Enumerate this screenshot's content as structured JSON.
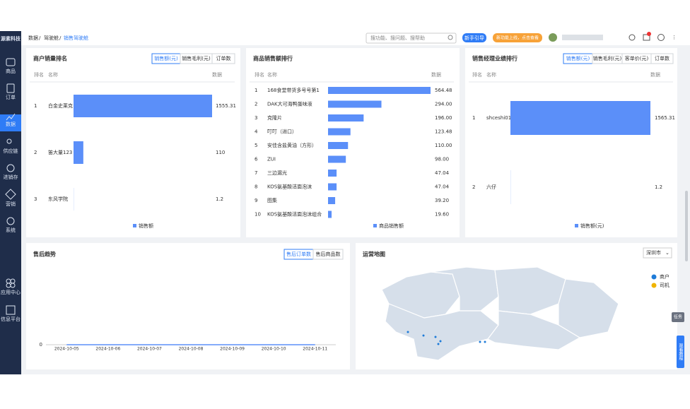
{
  "sidebar": {
    "logo": "源素科技",
    "items": [
      "商品",
      "订单",
      "数据",
      "供应链",
      "进销存",
      "营销",
      "系统",
      "应用中心",
      "信息平台"
    ]
  },
  "header": {
    "breadcrumb": [
      "数据",
      "驾驶舱",
      "销售驾驶舱"
    ],
    "search_placeholder": "搜功能、搜问题、搜帮助",
    "guide_button": "新手引导",
    "new_feature": "新功能上线，点击查看"
  },
  "side_tabs": [
    "任务",
    "观看教程"
  ],
  "chart_data": [
    {
      "type": "hbar",
      "title": "商户销量排名",
      "tabs": [
        "销售额(元)",
        "销售毛利(元)",
        "订单数"
      ],
      "columns": [
        "排名",
        "名称",
        "数据"
      ],
      "ranks": [
        1,
        2,
        3
      ],
      "categories": [
        "白金史莱克",
        "笛大量123",
        "东风学院"
      ],
      "xlim": [
        0,
        1555.31
      ],
      "series": [
        {
          "name": "销售额",
          "color": "#5b8ff9",
          "values": [
            1555.31,
            110,
            1.2
          ]
        }
      ]
    },
    {
      "type": "hbar",
      "title": "商品销售额排行",
      "columns": [
        "排名",
        "名称",
        "数据"
      ],
      "ranks": [
        1,
        2,
        3,
        4,
        5,
        6,
        7,
        8,
        9,
        10
      ],
      "categories": [
        "168食堂带货多号号第1",
        "DAK大可海鸭蛋味液",
        "克隆片",
        "叮叮（进口）",
        "安佳含盐黄油（方形）",
        "ZUI",
        "三边漏光",
        "KOS氨基酸洁面泡沫",
        "图集",
        "KOS氨基酸洁面泡沫组合"
      ],
      "xlim": [
        0,
        564.48
      ],
      "series": [
        {
          "name": "商品销售额",
          "color": "#5b8ff9",
          "values": [
            564.48,
            294,
            196,
            123.48,
            110,
            98,
            47.04,
            47.04,
            39.2,
            19.6
          ],
          "value_labels": [
            "564.48",
            "294.00",
            "196.00",
            "123.48",
            "110.00",
            "98.00",
            "47.04",
            "47.04",
            "39.20",
            "19.60"
          ]
        }
      ]
    },
    {
      "type": "hbar",
      "title": "销售经理业绩排行",
      "tabs": [
        "销售额(元)",
        "销售毛利(元)",
        "客单价(元)",
        "订单数"
      ],
      "columns": [
        "排名",
        "名称",
        "数据"
      ],
      "ranks": [
        1,
        2
      ],
      "categories": [
        "shceshi01",
        "六仔"
      ],
      "xlim": [
        0,
        1565.31
      ],
      "series": [
        {
          "name": "销售额(元)",
          "color": "#5b8ff9",
          "values": [
            1565.31,
            1.2
          ]
        }
      ]
    },
    {
      "type": "line",
      "title": "售后趋势",
      "tabs": [
        "售后订单数",
        "售后商品数"
      ],
      "categories": [
        "2024-10-05",
        "2024-10-06",
        "2024-10-07",
        "2024-10-08",
        "2024-10-09",
        "2024-10-10",
        "2024-10-11"
      ],
      "ylim": [
        0,
        1
      ],
      "yticks": [
        0
      ],
      "series": [
        {
          "color": "#5b8ff9",
          "values": [
            0,
            0,
            0,
            0,
            0,
            0,
            0
          ]
        }
      ]
    }
  ],
  "map": {
    "title": "运营地图",
    "city": "深圳市",
    "legend": [
      {
        "name": "商户",
        "color": "#1e7bd8"
      },
      {
        "name": "司机",
        "color": "#f0b400"
      }
    ]
  }
}
